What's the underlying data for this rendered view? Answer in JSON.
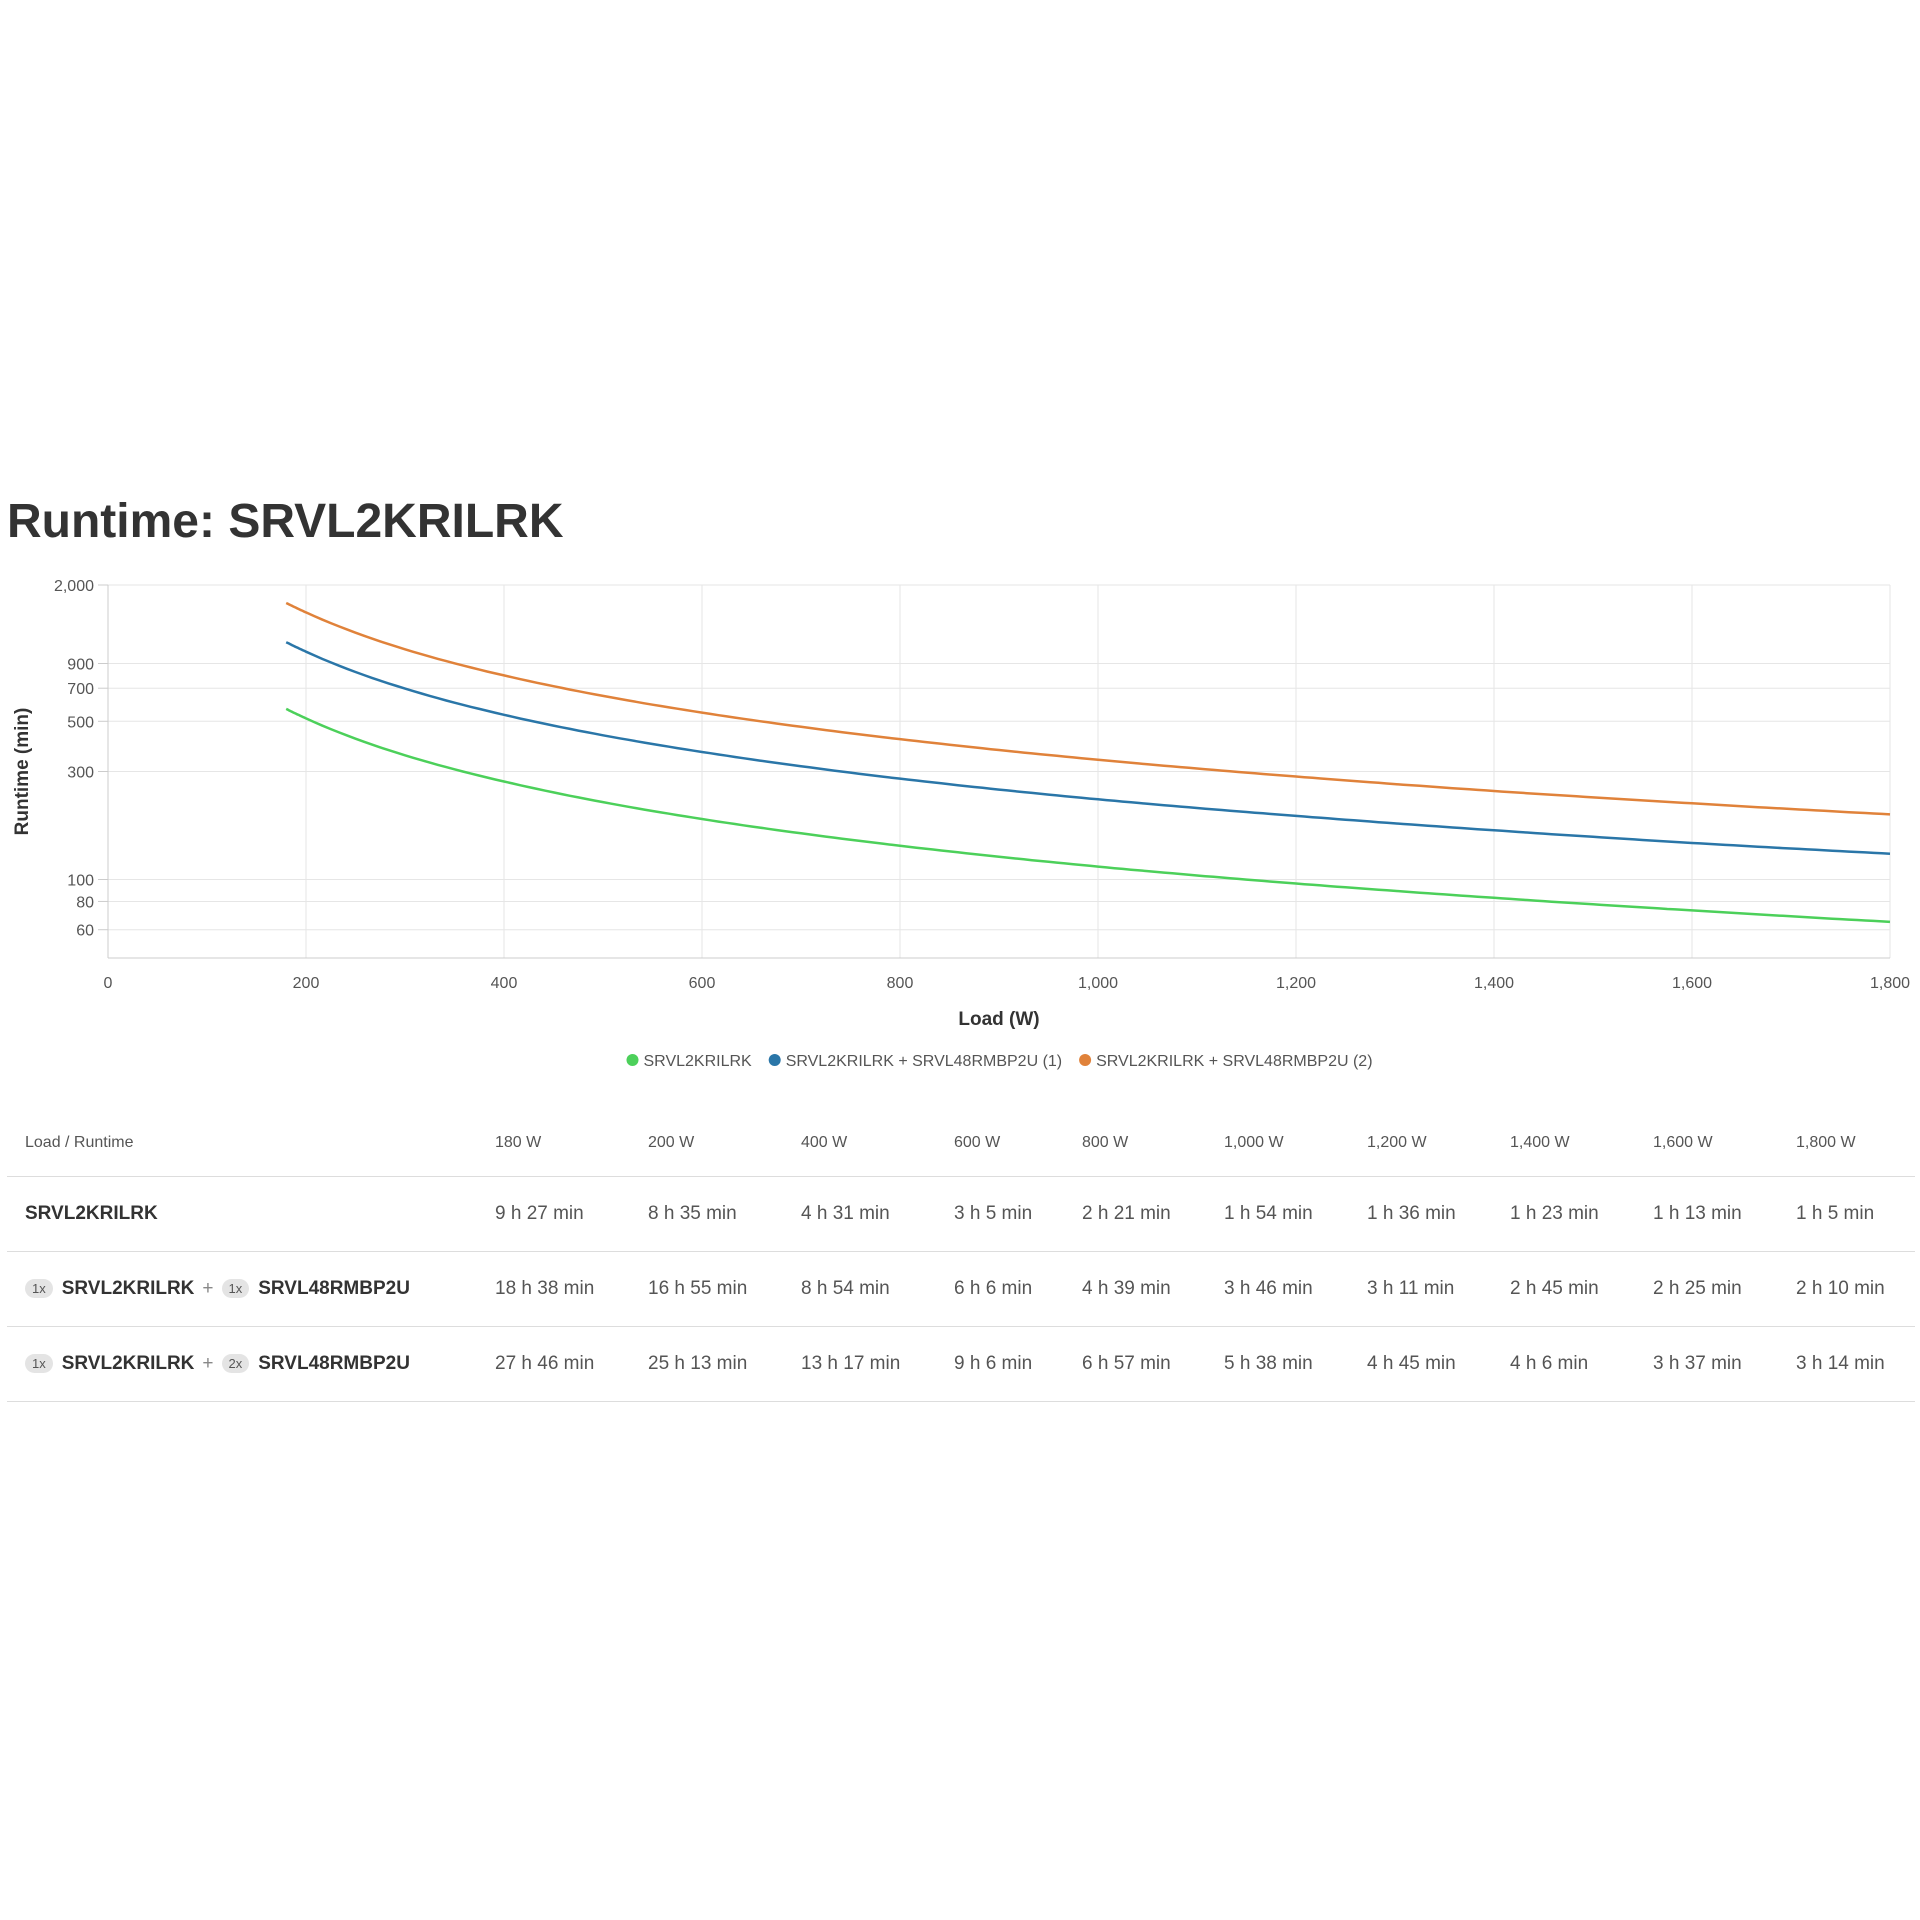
{
  "title": "Runtime: SRVL2KRILRK",
  "chart_data": {
    "type": "line",
    "title": "Runtime: SRVL2KRILRK",
    "xlabel": "Load (W)",
    "ylabel": "Runtime (min)",
    "xlim": [
      0,
      1800
    ],
    "x_ticks": [
      0,
      200,
      400,
      600,
      800,
      1000,
      1200,
      1400,
      1600,
      1800
    ],
    "x_tick_labels": [
      "0",
      "200",
      "400",
      "600",
      "800",
      "1,000",
      "1,200",
      "1,400",
      "1,600",
      "1,800"
    ],
    "y_scale": "log",
    "ylim": [
      45,
      2000
    ],
    "y_ticks": [
      60,
      80,
      100,
      300,
      500,
      700,
      900,
      2000
    ],
    "y_tick_labels": [
      "60",
      "80",
      "100",
      "300",
      "500",
      "700",
      "900",
      "2,000"
    ],
    "grid": true,
    "legend_position": "bottom-center",
    "x": [
      180,
      200,
      400,
      600,
      800,
      1000,
      1200,
      1400,
      1600,
      1800
    ],
    "series": [
      {
        "name": "SRVL2KRILRK",
        "color": "#4cd05a",
        "values": [
          567,
          515,
          271,
          185,
          141,
          114,
          96,
          83,
          73,
          65
        ]
      },
      {
        "name": "SRVL2KRILRK + SRVL48RMBP2U (1)",
        "color": "#2a76a8",
        "values": [
          1118,
          1015,
          534,
          366,
          279,
          226,
          191,
          165,
          145,
          130
        ]
      },
      {
        "name": "SRVL2KRILRK + SRVL48RMBP2U (2)",
        "color": "#e0823a",
        "values": [
          1666,
          1513,
          797,
          546,
          417,
          338,
          285,
          246,
          217,
          194
        ]
      }
    ]
  },
  "table": {
    "header_label": "Load / Runtime",
    "columns": [
      "180 W",
      "200 W",
      "400 W",
      "600 W",
      "800 W",
      "1,000 W",
      "1,200 W",
      "1,400 W",
      "1,600 W",
      "1,800 W"
    ],
    "rows": [
      {
        "name": "SRVL2KRILRK",
        "values": [
          "9 h 27 min",
          "8 h 35 min",
          "4 h 31 min",
          "3 h 5 min",
          "2 h 21 min",
          "1 h 54 min",
          "1 h 36 min",
          "1 h 23 min",
          "1 h 13 min",
          "1 h 5 min"
        ]
      },
      {
        "qty1": "1x",
        "product1": "SRVL2KRILRK",
        "plus": "+",
        "qty2": "1x",
        "product2": "SRVL48RMBP2U",
        "values": [
          "18 h 38 min",
          "16 h 55 min",
          "8 h 54 min",
          "6 h 6 min",
          "4 h 39 min",
          "3 h 46 min",
          "3 h 11 min",
          "2 h 45 min",
          "2 h 25 min",
          "2 h 10 min"
        ]
      },
      {
        "qty1": "1x",
        "product1": "SRVL2KRILRK",
        "plus": "+",
        "qty2": "2x",
        "product2": "SRVL48RMBP2U",
        "values": [
          "27 h 46 min",
          "25 h 13 min",
          "13 h 17 min",
          "9 h 6 min",
          "6 h 57 min",
          "5 h 38 min",
          "4 h 45 min",
          "4 h 6 min",
          "3 h 37 min",
          "3 h 14 min"
        ]
      }
    ]
  }
}
